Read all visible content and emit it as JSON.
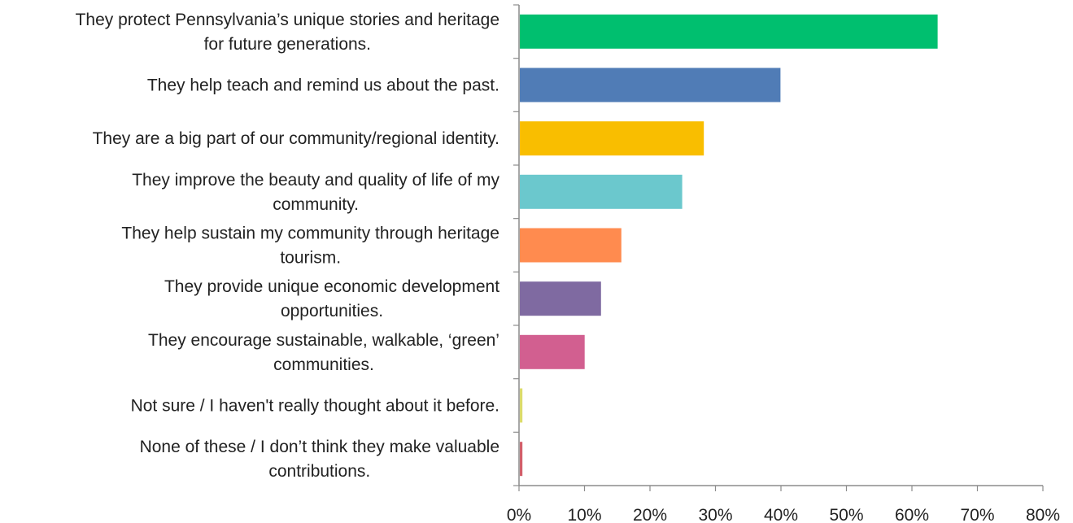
{
  "chart_data": {
    "type": "bar",
    "orientation": "horizontal",
    "categories": [
      [
        "They protect Pennsylvania’s unique stories and heritage",
        "for future generations."
      ],
      [
        "They help teach and remind us about the past."
      ],
      [
        "They are a big part of our community/regional identity."
      ],
      [
        "They improve the beauty and quality of life of my",
        "community."
      ],
      [
        "They help sustain my community through heritage",
        "tourism."
      ],
      [
        "They provide unique economic development",
        "opportunities."
      ],
      [
        "They encourage sustainable, walkable, ‘green’",
        "communities."
      ],
      [
        "Not sure / I haven't really thought about it before."
      ],
      [
        "None of these / I don’t think they make valuable",
        "contributions."
      ]
    ],
    "values": [
      0.638,
      0.398,
      0.281,
      0.248,
      0.155,
      0.124,
      0.099,
      0.004,
      0.004
    ],
    "colors": [
      "#00BF6F",
      "#507CB6",
      "#F9BE00",
      "#6BC8CD",
      "#FF8B4F",
      "#7F6AA1",
      "#D25F90",
      "#DBDB6B",
      "#D25F6A"
    ],
    "xlim": [
      0,
      0.8
    ],
    "ticks": [
      0,
      0.1,
      0.2,
      0.3,
      0.4,
      0.5,
      0.6,
      0.7,
      0.8
    ],
    "tick_labels": [
      "0%",
      "10%",
      "20%",
      "30%",
      "40%",
      "50%",
      "60%",
      "70%",
      "80%"
    ],
    "title": "",
    "xlabel": "",
    "ylabel": "",
    "grid": false,
    "legend": false
  }
}
